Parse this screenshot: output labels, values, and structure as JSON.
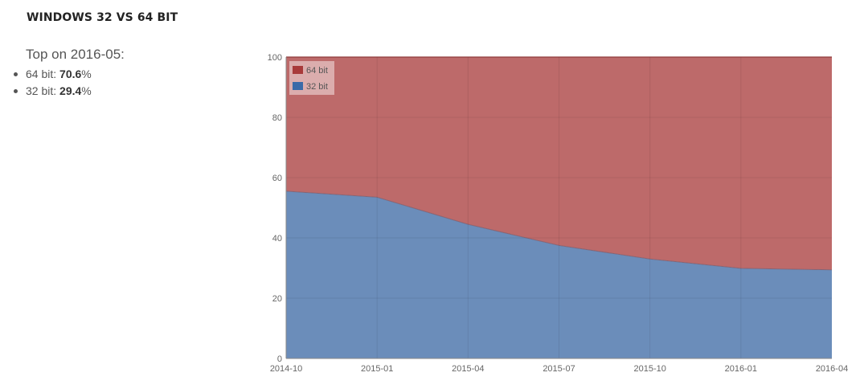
{
  "section": {
    "title": "WINDOWS 32 VS 64 BIT"
  },
  "summary": {
    "heading": "Top on 2016-05:",
    "items": [
      {
        "label": "64 bit: ",
        "value": "70.6",
        "unit": "%"
      },
      {
        "label": "32 bit: ",
        "value": "29.4",
        "unit": "%"
      }
    ]
  },
  "colors": {
    "bit64": "#a83a3a",
    "bit32": "#3a6aa8",
    "bit64_fill": "#bd6a6a",
    "bit32_fill": "#6b8dba"
  },
  "chart_data": {
    "type": "area",
    "stacked": true,
    "x": [
      "2014-10",
      "2015-01",
      "2015-04",
      "2015-07",
      "2015-10",
      "2016-01",
      "2016-04"
    ],
    "x_tick_labels": [
      "2014-10",
      "2015-01",
      "2015-04",
      "2015-07",
      "2015-10",
      "2016-01",
      "2016-04"
    ],
    "series": [
      {
        "name": "32 bit",
        "values": [
          55.5,
          53.5,
          44.5,
          37.5,
          33.0,
          29.9,
          29.4
        ]
      },
      {
        "name": "64 bit",
        "values": [
          44.5,
          46.5,
          55.5,
          62.5,
          67.0,
          70.1,
          70.6
        ]
      }
    ],
    "ylim": [
      0,
      100
    ],
    "y_ticks": [
      0,
      20,
      40,
      60,
      80,
      100
    ],
    "title": "",
    "xlabel": "",
    "ylabel": "",
    "grid": true,
    "legend": {
      "position": "top-left",
      "entries": [
        "64 bit",
        "32 bit"
      ]
    }
  }
}
